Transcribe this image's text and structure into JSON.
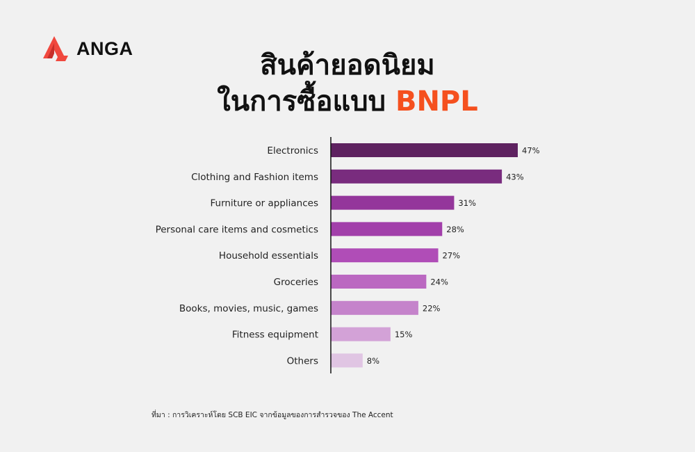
{
  "brand": {
    "name": "ANGA",
    "logo_icon": "anga-logo-icon",
    "logo_color": "#f0483e"
  },
  "title": {
    "line1": "สินค้ายอดนิยม",
    "line2_prefix": "ในการซื้อแบบ",
    "line2_accent": "BNPL",
    "accent_color": "#f5501e"
  },
  "chart_data": {
    "type": "bar",
    "orientation": "horizontal",
    "categories": [
      "Electronics",
      "Clothing and Fashion items",
      "Furniture or appliances",
      "Personal care items and cosmetics",
      "Household essentials",
      "Groceries",
      "Books, movies, music, games",
      "Fitness equipment",
      "Others"
    ],
    "values": [
      47,
      43,
      31,
      28,
      27,
      24,
      22,
      15,
      8
    ],
    "value_labels": [
      "47%",
      "43%",
      "31%",
      "28%",
      "27%",
      "24%",
      "22%",
      "15%",
      "8%"
    ],
    "colors": [
      "#5e2260",
      "#792c7e",
      "#94369b",
      "#a23faa",
      "#b04db7",
      "#bb68c1",
      "#c583cb",
      "#d3a2d7",
      "#e0c5e3"
    ],
    "unit": "%",
    "xlim": [
      0,
      50
    ]
  },
  "footer": {
    "source": "ที่มา : การวิเคราะห์โดย SCB EIC จากข้อมูลของการสำรวจของ The Accent"
  }
}
